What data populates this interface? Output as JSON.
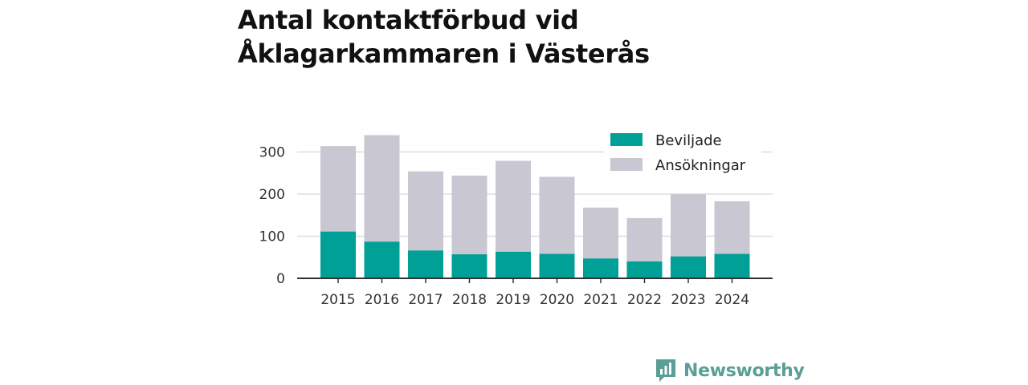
{
  "chart_data": {
    "type": "bar",
    "stacked": false,
    "overlaid": true,
    "title": "Antal kontaktförbud vid Åklagarkammaren i Västerås",
    "categories": [
      "2015",
      "2016",
      "2017",
      "2018",
      "2019",
      "2020",
      "2021",
      "2022",
      "2023",
      "2024"
    ],
    "series": [
      {
        "name": "Ansökningar",
        "color": "#c8c7d2",
        "values": [
          314,
          340,
          254,
          244,
          279,
          241,
          168,
          143,
          200,
          183
        ]
      },
      {
        "name": "Beviljade",
        "color": "#00a096",
        "values": [
          111,
          87,
          66,
          57,
          63,
          58,
          47,
          40,
          52,
          58
        ]
      }
    ],
    "legend_order": [
      "Beviljade",
      "Ansökningar"
    ],
    "yticks": [
      0,
      100,
      200,
      300
    ],
    "ylim": [
      0,
      360
    ],
    "xlabel": "",
    "ylabel": "",
    "grid": true,
    "legend_position": "top-right"
  },
  "brand": {
    "name": "Newsworthy",
    "icon": "newsworthy-logo-icon",
    "color": "#5a9e96"
  }
}
